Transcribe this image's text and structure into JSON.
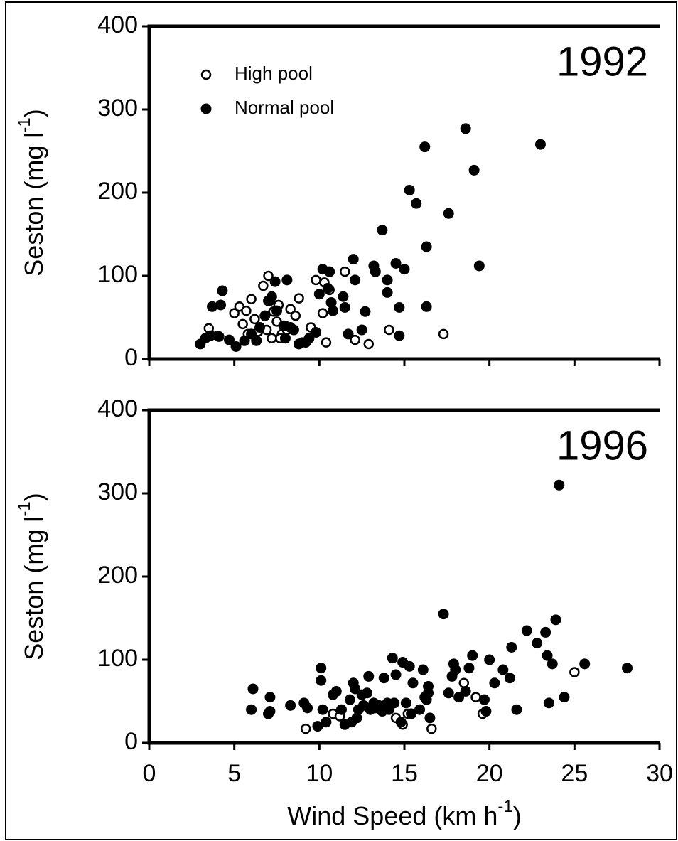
{
  "chart_data": [
    {
      "type": "scatter",
      "annotation": "1992",
      "ylabel": [
        "Seston (mg l",
        "-1",
        ")"
      ],
      "xlim": [
        0,
        30
      ],
      "xticks": [
        0,
        5,
        10,
        15,
        20,
        25,
        30
      ],
      "xtick_labels": false,
      "ylim": [
        0,
        400
      ],
      "yticks": [
        0,
        100,
        200,
        300,
        400
      ],
      "legend": "upper left",
      "series": [
        {
          "name": "High pool",
          "color": "#000000",
          "marker": "open",
          "x": [
            3.5,
            4,
            5,
            5.3,
            5.5,
            5.7,
            6,
            6.2,
            6.4,
            5.8,
            6.7,
            7,
            7.1,
            7.3,
            7.5,
            7.6,
            6.9,
            7.2,
            7.8,
            8,
            8.3,
            8.6,
            8.8,
            9,
            9.5,
            9.8,
            10.2,
            10.3,
            10.6,
            10.4,
            11.5,
            12.1,
            12.9,
            14.1,
            17.3,
            7.7,
            8.1
          ],
          "values": [
            37,
            28,
            55,
            63,
            42,
            58,
            72,
            48,
            33,
            30,
            88,
            100,
            70,
            57,
            45,
            65,
            35,
            25,
            30,
            40,
            60,
            52,
            73,
            20,
            38,
            95,
            55,
            92,
            83,
            20,
            105,
            23,
            18,
            35,
            30,
            25,
            35
          ]
        },
        {
          "name": "Normal pool",
          "color": "#000000",
          "marker": "filled",
          "x": [
            3,
            3.3,
            3.6,
            3.7,
            4.1,
            4.2,
            4.3,
            4.7,
            5.1,
            5.6,
            6,
            6.3,
            6.5,
            6.8,
            7,
            7.2,
            7.4,
            7.5,
            7.9,
            8,
            8.1,
            8.3,
            8.5,
            8.8,
            9.2,
            9.4,
            9.8,
            10,
            10.2,
            10.5,
            10.6,
            10.7,
            10.8,
            11.4,
            11.5,
            11.7,
            12,
            12.1,
            12.5,
            12.7,
            13.2,
            13.3,
            13.7,
            14,
            14,
            14.5,
            14.7,
            14.7,
            15,
            15.3,
            15.7,
            16.2,
            16.3,
            16.3,
            17.6,
            18.6,
            19.1,
            19.4,
            23
          ],
          "values": [
            18,
            25,
            28,
            63,
            27,
            65,
            82,
            23,
            15,
            22,
            30,
            22,
            38,
            52,
            70,
            75,
            93,
            58,
            40,
            25,
            95,
            38,
            35,
            18,
            20,
            25,
            32,
            78,
            108,
            85,
            105,
            68,
            58,
            75,
            62,
            30,
            120,
            95,
            35,
            57,
            112,
            105,
            155,
            80,
            95,
            115,
            62,
            28,
            108,
            203,
            187,
            255,
            135,
            63,
            175,
            277,
            227,
            112,
            258
          ]
        }
      ]
    },
    {
      "type": "scatter",
      "annotation": "1996",
      "ylabel": [
        "Seston (mg l",
        "-1",
        ")"
      ],
      "xlabel": [
        "Wind Speed (km h",
        "-1",
        ")"
      ],
      "xlim": [
        0,
        30
      ],
      "xticks": [
        0,
        5,
        10,
        15,
        20,
        25,
        30
      ],
      "xtick_labels": true,
      "ylim": [
        0,
        400
      ],
      "yticks": [
        0,
        100,
        200,
        300,
        400
      ],
      "legend": false,
      "series": [
        {
          "name": "High pool",
          "color": "#000000",
          "marker": "open",
          "x": [
            9.2,
            10.8,
            11.2,
            14.5,
            14.9,
            15.2,
            16.6,
            18.5,
            19.2,
            19.6,
            25
          ],
          "values": [
            17,
            35,
            32,
            30,
            22,
            35,
            17,
            72,
            55,
            35,
            85
          ]
        },
        {
          "name": "Normal pool",
          "color": "#000000",
          "marker": "filled",
          "x": [
            6,
            6.1,
            7,
            7.1,
            7.1,
            8.3,
            9.1,
            9.3,
            9.9,
            10.1,
            10.1,
            10.2,
            10.4,
            10.8,
            11,
            11.3,
            11.5,
            11.8,
            11.9,
            12,
            12.1,
            12.2,
            12.3,
            12.5,
            12.6,
            12.8,
            12.9,
            13,
            13.2,
            13.3,
            13.5,
            13.7,
            13.8,
            14,
            14.1,
            14.3,
            14.4,
            14.5,
            14.8,
            14.9,
            15.1,
            15.3,
            15.4,
            15.5,
            15.9,
            16.1,
            16.2,
            16.3,
            16.4,
            16.4,
            16.5,
            17.3,
            17.6,
            17.8,
            17.9,
            18,
            18.2,
            18.6,
            18.8,
            19,
            19.7,
            19.8,
            20,
            20.3,
            20.8,
            21.2,
            21.3,
            21.6,
            22.2,
            22.8,
            23.3,
            23.4,
            23.5,
            23.7,
            23.9,
            24.1,
            24.4,
            25.6,
            28.1
          ],
          "values": [
            40,
            65,
            35,
            38,
            55,
            45,
            48,
            42,
            20,
            90,
            75,
            40,
            25,
            58,
            62,
            40,
            22,
            52,
            25,
            72,
            65,
            30,
            40,
            58,
            45,
            60,
            80,
            40,
            48,
            42,
            45,
            38,
            78,
            48,
            40,
            102,
            48,
            82,
            25,
            97,
            48,
            92,
            35,
            72,
            40,
            88,
            55,
            52,
            68,
            60,
            30,
            155,
            60,
            80,
            95,
            88,
            55,
            62,
            90,
            105,
            52,
            38,
            100,
            72,
            88,
            78,
            115,
            40,
            135,
            120,
            133,
            105,
            48,
            95,
            148,
            310,
            55,
            95,
            90
          ]
        }
      ]
    }
  ]
}
